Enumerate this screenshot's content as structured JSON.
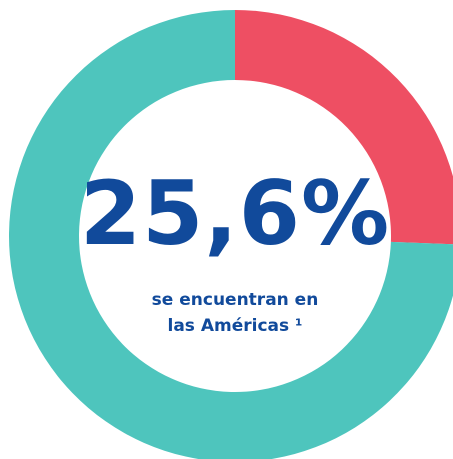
{
  "chart_data": {
    "type": "donut",
    "values": [
      25.6,
      74.4
    ],
    "value_labels": [
      "25,6%",
      null
    ],
    "colors": [
      "#ee4f63",
      "#4ec5bd"
    ],
    "annotation": [
      "se encuentran en",
      "las Américas ¹"
    ]
  }
}
